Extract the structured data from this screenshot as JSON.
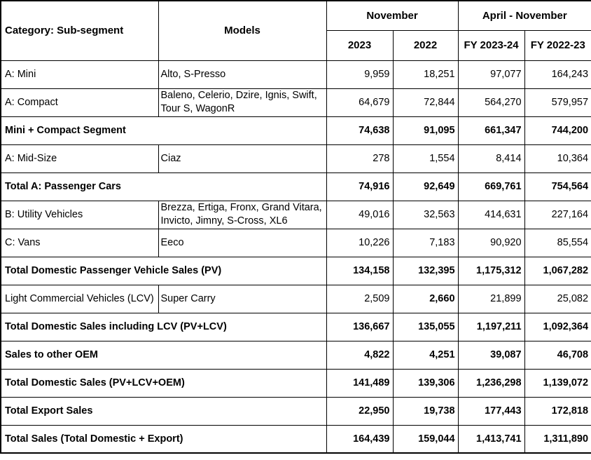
{
  "chart_data": {
    "type": "table",
    "header": {
      "category_label": "Category: Sub-segment",
      "models_label": "Models",
      "group_november": "November",
      "group_april_november": "April - November",
      "subcolumns": [
        "2023",
        "2022",
        "FY 2023-24",
        "FY 2022-23"
      ]
    },
    "rows": [
      {
        "type": "data",
        "category": "A: Mini",
        "models": "Alto, S-Presso",
        "values": [
          "9,959",
          "18,251",
          "97,077",
          "164,243"
        ],
        "bold_values": [
          false,
          false,
          false,
          false
        ]
      },
      {
        "type": "data",
        "category": "A: Compact",
        "models": "Baleno, Celerio, Dzire, Ignis, Swift, Tour S, WagonR",
        "values": [
          "64,679",
          "72,844",
          "564,270",
          "579,957"
        ],
        "bold_values": [
          false,
          false,
          false,
          false
        ]
      },
      {
        "type": "summary",
        "category": "Mini + Compact Segment",
        "values": [
          "74,638",
          "91,095",
          "661,347",
          "744,200"
        ],
        "bold_values": [
          true,
          true,
          true,
          true
        ]
      },
      {
        "type": "data",
        "category": "A: Mid-Size",
        "models": "Ciaz",
        "values": [
          "278",
          "1,554",
          "8,414",
          "10,364"
        ],
        "bold_values": [
          false,
          false,
          false,
          false
        ]
      },
      {
        "type": "summary",
        "category": "Total A: Passenger Cars",
        "values": [
          "74,916",
          "92,649",
          "669,761",
          "754,564"
        ],
        "bold_values": [
          true,
          true,
          true,
          true
        ]
      },
      {
        "type": "data",
        "category": "B: Utility Vehicles",
        "models": "Brezza, Ertiga, Fronx, Grand Vitara, Invicto, Jimny, S-Cross, XL6",
        "values": [
          "49,016",
          "32,563",
          "414,631",
          "227,164"
        ],
        "bold_values": [
          false,
          false,
          false,
          false
        ]
      },
      {
        "type": "data",
        "category": "C: Vans",
        "models": "Eeco",
        "values": [
          "10,226",
          "7,183",
          "90,920",
          "85,554"
        ],
        "bold_values": [
          false,
          false,
          false,
          false
        ]
      },
      {
        "type": "summary",
        "category": "Total Domestic Passenger Vehicle Sales (PV)",
        "values": [
          "134,158",
          "132,395",
          "1,175,312",
          "1,067,282"
        ],
        "bold_values": [
          true,
          true,
          true,
          true
        ]
      },
      {
        "type": "data",
        "category": "Light Commercial Vehicles (LCV)",
        "models": "Super Carry",
        "values": [
          "2,509",
          "2,660",
          "21,899",
          "25,082"
        ],
        "bold_values": [
          false,
          true,
          false,
          false
        ]
      },
      {
        "type": "summary",
        "category": "Total Domestic Sales including LCV (PV+LCV)",
        "values": [
          "136,667",
          "135,055",
          "1,197,211",
          "1,092,364"
        ],
        "bold_values": [
          true,
          true,
          true,
          true
        ]
      },
      {
        "type": "summary",
        "category": "Sales to other OEM",
        "values": [
          "4,822",
          "4,251",
          "39,087",
          "46,708"
        ],
        "bold_values": [
          true,
          true,
          true,
          true
        ]
      },
      {
        "type": "summary",
        "category": "Total Domestic Sales (PV+LCV+OEM)",
        "values": [
          "141,489",
          "139,306",
          "1,236,298",
          "1,139,072"
        ],
        "bold_values": [
          true,
          true,
          true,
          true
        ]
      },
      {
        "type": "summary",
        "category": "Total Export Sales",
        "values": [
          "22,950",
          "19,738",
          "177,443",
          "172,818"
        ],
        "bold_values": [
          true,
          true,
          true,
          true
        ]
      },
      {
        "type": "summary",
        "category": "Total Sales (Total Domestic + Export)",
        "values": [
          "164,439",
          "159,044",
          "1,413,741",
          "1,311,890"
        ],
        "bold_values": [
          true,
          true,
          true,
          true
        ]
      }
    ]
  },
  "style": {
    "border_color": "#000000",
    "text_color": "#000000",
    "background_color": "#ffffff"
  }
}
